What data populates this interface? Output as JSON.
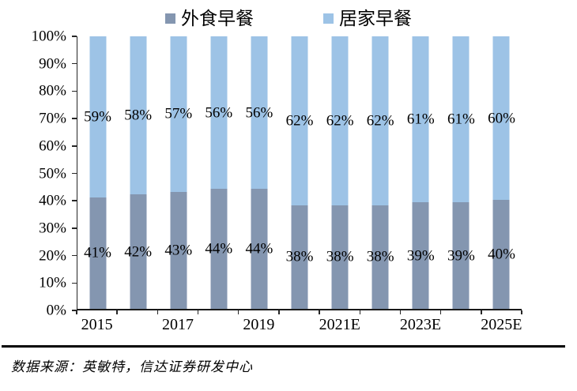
{
  "legend": {
    "items": [
      {
        "label": "外食早餐",
        "color": "#8496B0"
      },
      {
        "label": "居家早餐",
        "color": "#9DC3E6"
      }
    ]
  },
  "chart_data": {
    "type": "bar",
    "subtype": "stacked-100",
    "title": "",
    "xlabel": "",
    "ylabel": "",
    "ylim": [
      0,
      100
    ],
    "grid": false,
    "legend_position": "top",
    "bar_count": 11,
    "x_tick_labels": [
      "2015",
      "2017",
      "2019",
      "2021E",
      "2023E",
      "2025E"
    ],
    "x_tick_label_slots": [
      0,
      2,
      4,
      6,
      8,
      10
    ],
    "y_tick_labels": [
      "100%",
      "90%",
      "80%",
      "70%",
      "60%",
      "50%",
      "40%",
      "30%",
      "20%",
      "10%",
      "0%"
    ],
    "series": [
      {
        "name": "外食早餐",
        "position": "bottom",
        "color": "#8496B0",
        "values": [
          41,
          42,
          43,
          44,
          44,
          38,
          38,
          38,
          39,
          39,
          40
        ],
        "labels": [
          "41%",
          "42%",
          "43%",
          "44%",
          "44%",
          "38%",
          "38%",
          "38%",
          "39%",
          "39%",
          "40%"
        ]
      },
      {
        "name": "居家早餐",
        "position": "top",
        "color": "#9DC3E6",
        "values": [
          59,
          58,
          57,
          56,
          56,
          62,
          62,
          62,
          61,
          61,
          60
        ],
        "labels": [
          "59%",
          "58%",
          "57%",
          "56%",
          "56%",
          "62%",
          "62%",
          "62%",
          "61%",
          "61%",
          "60%"
        ]
      }
    ]
  },
  "footer": {
    "source_note": "数据来源：英敏特，信达证券研发中心"
  }
}
